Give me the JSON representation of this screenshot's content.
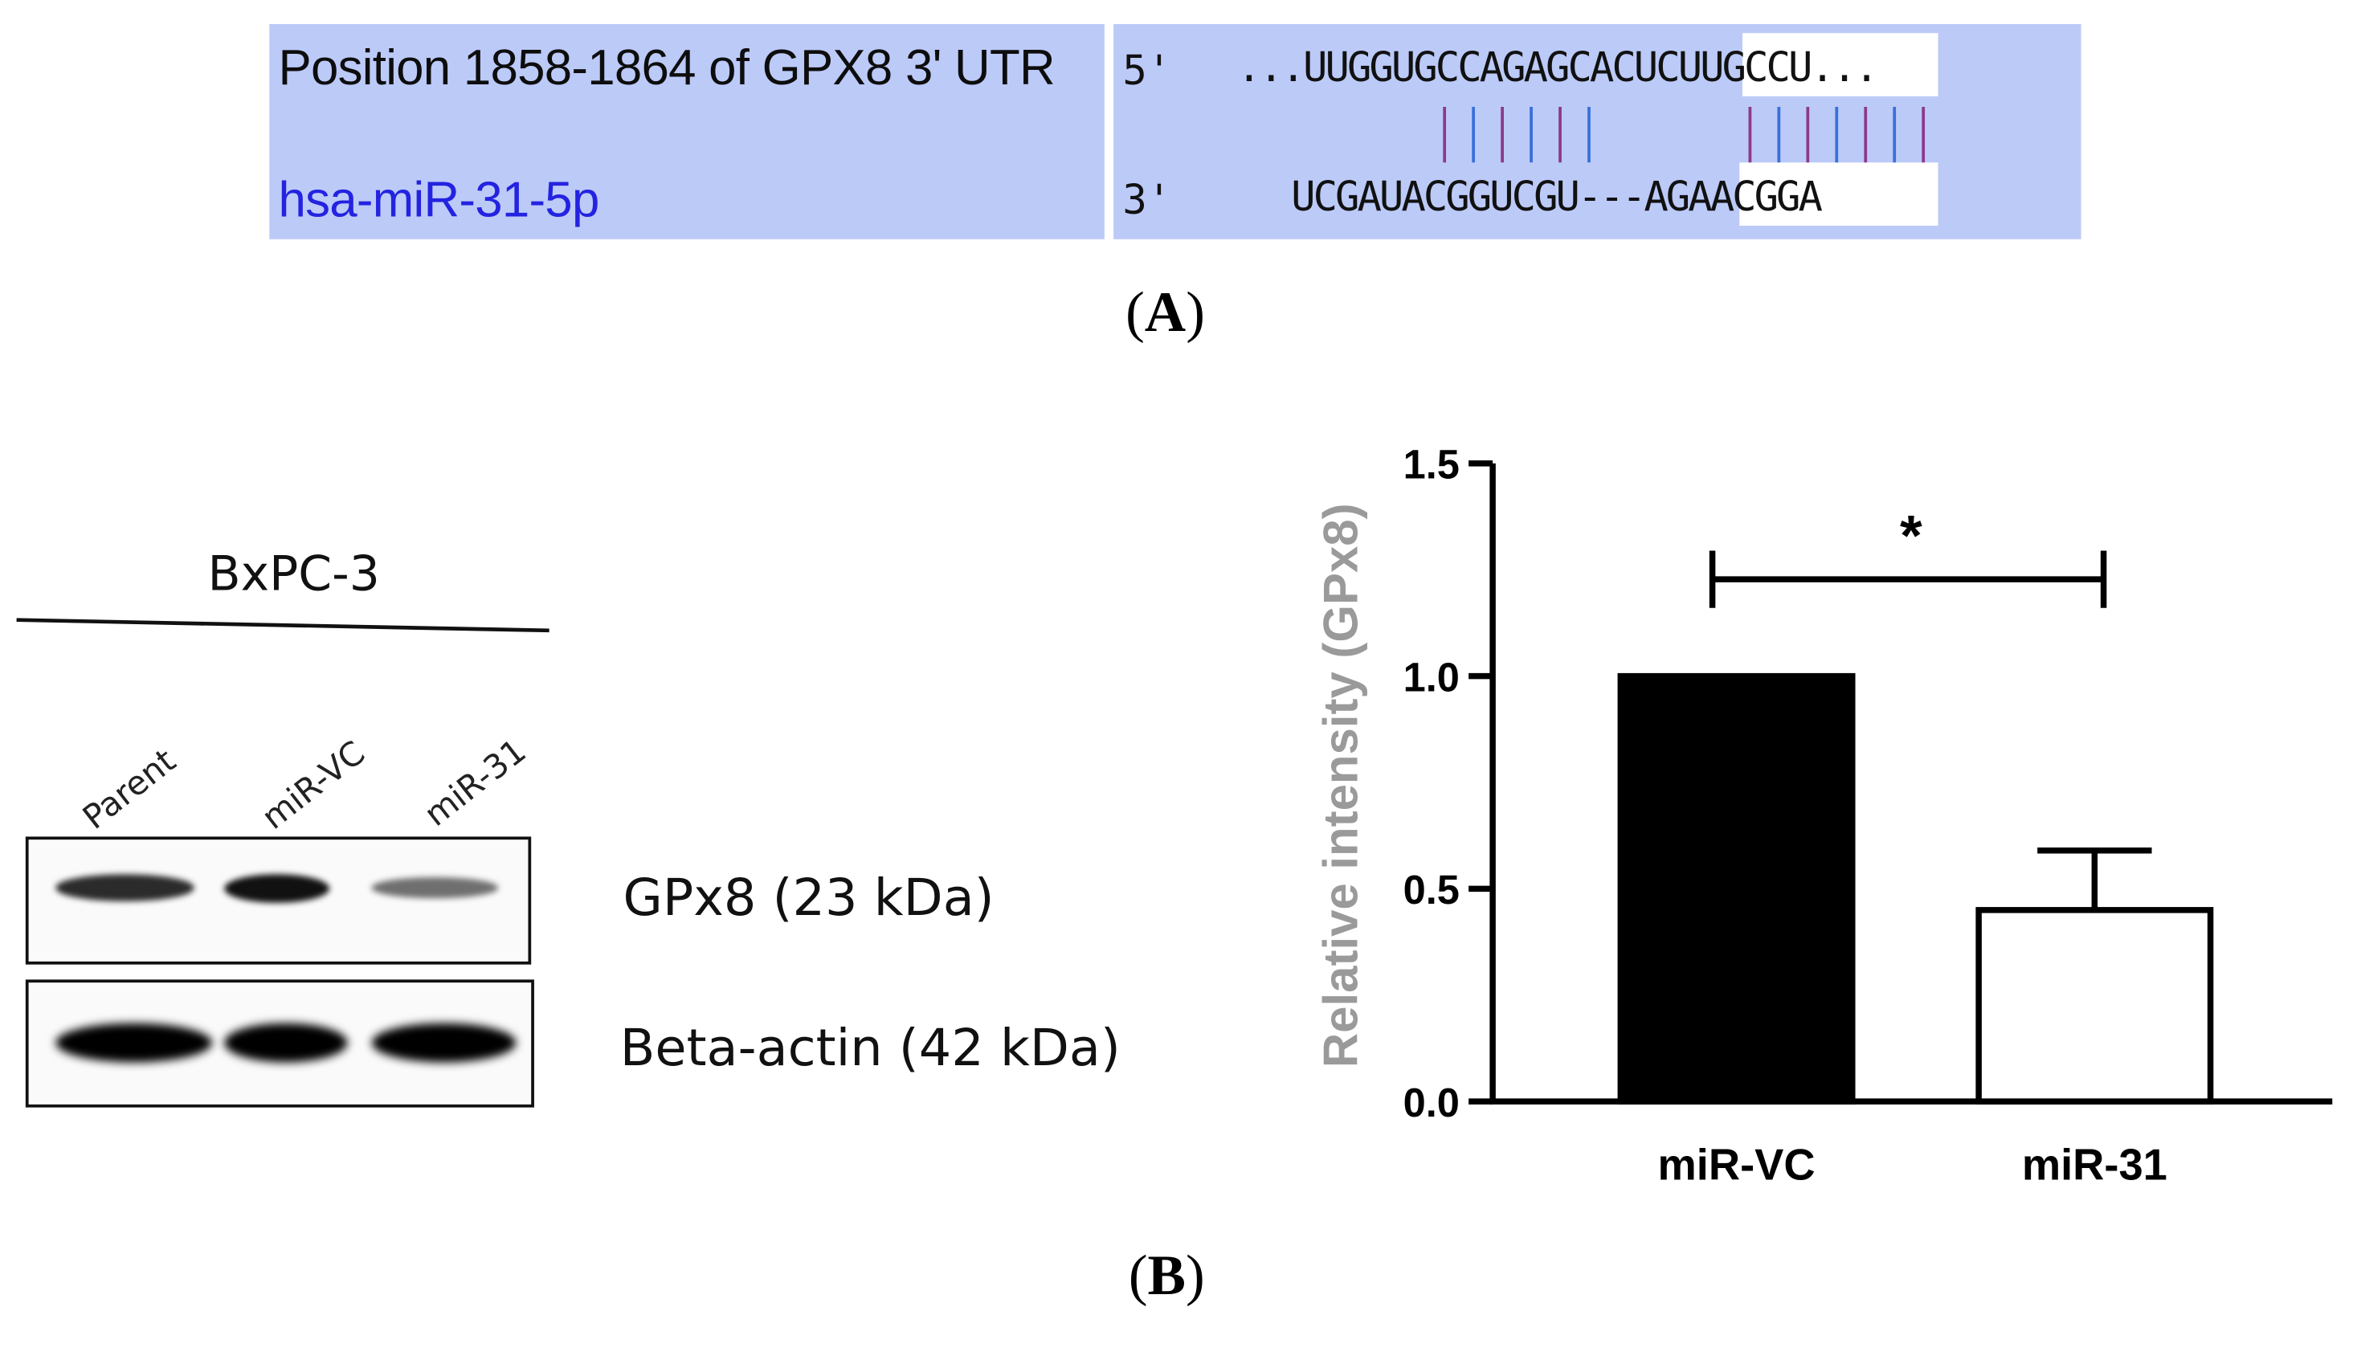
{
  "panel_a": {
    "label": "A",
    "target_position": "Position 1858-1864 of GPX8 3' UTR",
    "mirna_name": "hsa-miR-31-5p",
    "utr_end_label": "5'",
    "utr_sequence": "...UUGGUGCCAGAGCACUCUUGCCU...",
    "mirna_end_label": "3'",
    "mirna_sequence": "UCGAUACGGUCGU---AGAACGGA",
    "pairing_line_colors": [
      "#8b3a8b",
      "#3a6fd8"
    ]
  },
  "panel_b": {
    "label": "B",
    "blot": {
      "cell_line": "BxPC-3",
      "lanes": [
        "Parent",
        "miR-VC",
        "miR-31"
      ],
      "bands": [
        {
          "name": "GPx8 (23 kDa)",
          "relative_intensity": [
            0.75,
            0.9,
            0.35
          ]
        },
        {
          "name": "Beta-actin (42 kDa)",
          "relative_intensity": [
            1.0,
            1.0,
            1.0
          ]
        }
      ]
    },
    "chart_data": {
      "type": "bar",
      "categories": [
        "miR-VC",
        "miR-31"
      ],
      "values": [
        1.0,
        0.45
      ],
      "error_upper": [
        0,
        0.14
      ],
      "bar_fill": [
        "#000000",
        "#ffffff"
      ],
      "ylabel": "Relative intensity (GPx8)",
      "ylim": [
        0,
        1.5
      ],
      "yticks": [
        "0.0",
        "0.5",
        "1.0",
        "1.5"
      ],
      "significance": {
        "between": [
          "miR-VC",
          "miR-31"
        ],
        "label": "*"
      },
      "grid": false,
      "legend": "none"
    }
  }
}
